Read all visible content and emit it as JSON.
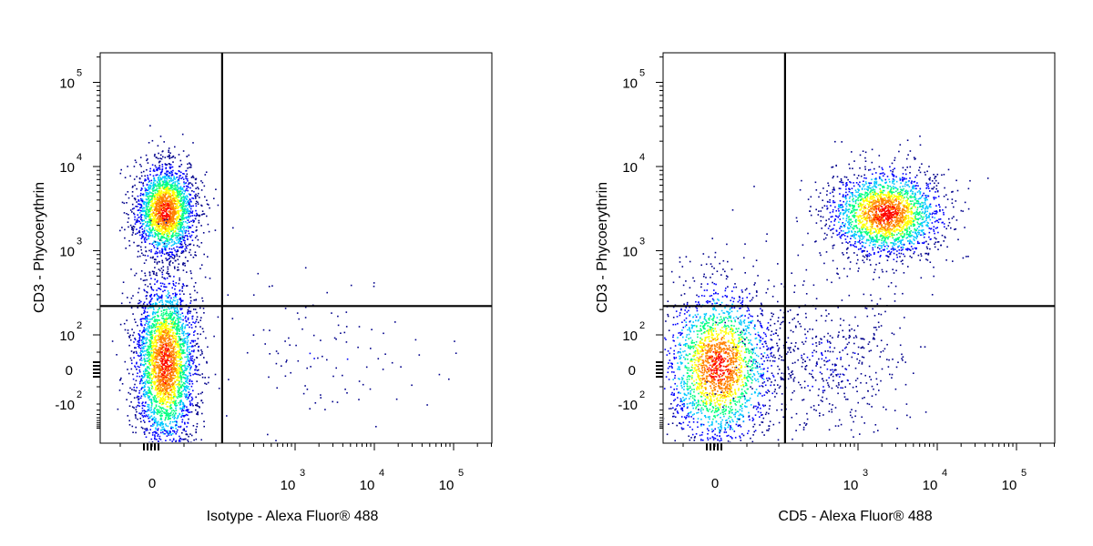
{
  "chart_data": [
    {
      "type": "scatter",
      "subtype": "flow-cytometry-density-dot-plot",
      "xlabel": "Isotype - Alexa Fluor® 488",
      "ylabel": "CD3 - Phycoerythrin",
      "x_scale": "biexponential",
      "y_scale": "biexponential",
      "xlim": [
        -500,
        200000
      ],
      "ylim": [
        -500,
        250000
      ],
      "x_ticks": [
        {
          "value": 0,
          "mantissa": "0",
          "exp": ""
        },
        {
          "value": 1000,
          "mantissa": "10",
          "exp": "3"
        },
        {
          "value": 10000,
          "mantissa": "10",
          "exp": "4"
        },
        {
          "value": 100000,
          "mantissa": "10",
          "exp": "5"
        }
      ],
      "y_ticks": [
        {
          "value": -100,
          "mantissa": "-10",
          "exp": "2"
        },
        {
          "value": 0,
          "mantissa": "0",
          "exp": ""
        },
        {
          "value": 100,
          "mantissa": "10",
          "exp": "2"
        },
        {
          "value": 1000,
          "mantissa": "10",
          "exp": "3"
        },
        {
          "value": 10000,
          "mantissa": "10",
          "exp": "4"
        },
        {
          "value": 100000,
          "mantissa": "10",
          "exp": "5"
        }
      ],
      "quadrant_gate": {
        "x": 120,
        "y": 220
      },
      "populations": [
        {
          "x_center": 20,
          "y_center": 3000,
          "relative_count": 0.42
        },
        {
          "x_center": 20,
          "y_center": 20,
          "relative_count": 0.56
        },
        {
          "x_center": 2500,
          "y_center": 60,
          "relative_count": 0.02
        }
      ],
      "grid": false,
      "color_scale": [
        "#00008b",
        "#0000ff",
        "#00c8ff",
        "#00ff80",
        "#ffff00",
        "#ff8000",
        "#ff0000"
      ]
    },
    {
      "type": "scatter",
      "subtype": "flow-cytometry-density-dot-plot",
      "xlabel": "CD5 - Alexa Fluor® 488",
      "ylabel": "CD3 - Phycoerythrin",
      "x_scale": "biexponential",
      "y_scale": "biexponential",
      "xlim": [
        -500,
        200000
      ],
      "ylim": [
        -500,
        250000
      ],
      "x_ticks": [
        {
          "value": 0,
          "mantissa": "0",
          "exp": ""
        },
        {
          "value": 1000,
          "mantissa": "10",
          "exp": "3"
        },
        {
          "value": 10000,
          "mantissa": "10",
          "exp": "4"
        },
        {
          "value": 100000,
          "mantissa": "10",
          "exp": "5"
        }
      ],
      "y_ticks": [
        {
          "value": -100,
          "mantissa": "-10",
          "exp": "2"
        },
        {
          "value": 0,
          "mantissa": "0",
          "exp": ""
        },
        {
          "value": 100,
          "mantissa": "10",
          "exp": "2"
        },
        {
          "value": 1000,
          "mantissa": "10",
          "exp": "3"
        },
        {
          "value": 10000,
          "mantissa": "10",
          "exp": "4"
        },
        {
          "value": 100000,
          "mantissa": "10",
          "exp": "5"
        }
      ],
      "quadrant_gate": {
        "x": 120,
        "y": 220
      },
      "populations": [
        {
          "x_center": 2200,
          "y_center": 2800,
          "relative_count": 0.44
        },
        {
          "x_center": 5,
          "y_center": 10,
          "relative_count": 0.46
        },
        {
          "x_center": 400,
          "y_center": 30,
          "relative_count": 0.1
        }
      ],
      "grid": false,
      "color_scale": [
        "#00008b",
        "#0000ff",
        "#00c8ff",
        "#00ff80",
        "#ffff00",
        "#ff8000",
        "#ff0000"
      ]
    }
  ]
}
